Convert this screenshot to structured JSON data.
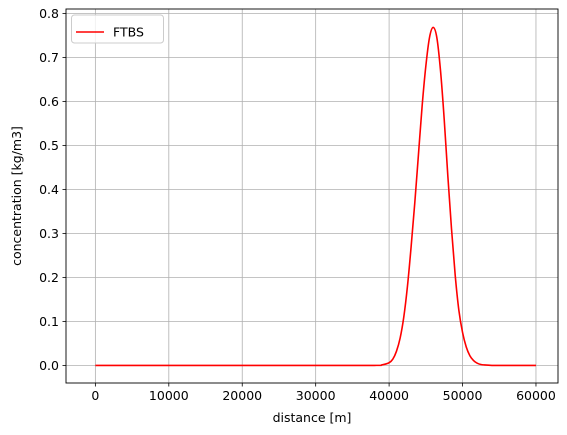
{
  "chart_data": {
    "type": "line",
    "xlabel": "distance [m]",
    "ylabel": "concentration [kg/m3]",
    "xlim": [
      -4000,
      63000
    ],
    "ylim": [
      -0.04,
      0.81
    ],
    "x_ticks": [
      0,
      10000,
      20000,
      30000,
      40000,
      50000,
      60000
    ],
    "x_tick_labels": [
      "0",
      "10000",
      "20000",
      "30000",
      "40000",
      "50000",
      "60000"
    ],
    "y_ticks": [
      0.0,
      0.1,
      0.2,
      0.3,
      0.4,
      0.5,
      0.6,
      0.7,
      0.8
    ],
    "y_tick_labels": [
      "0.0",
      "0.1",
      "0.2",
      "0.3",
      "0.4",
      "0.5",
      "0.6",
      "0.7",
      "0.8"
    ],
    "grid": true,
    "legend_position": "top-left",
    "series": [
      {
        "name": "FTBS",
        "color": "#ff0000",
        "x": [
          0,
          10000,
          20000,
          30000,
          38000,
          39000,
          40000,
          40500,
          41000,
          41500,
          42000,
          42500,
          43000,
          43500,
          44000,
          44500,
          45000,
          45500,
          46000,
          46500,
          47000,
          47500,
          48000,
          48500,
          49000,
          49500,
          50000,
          50500,
          51000,
          51500,
          52000,
          52500,
          53000,
          54000,
          55000,
          60000
        ],
        "y": [
          0.0,
          0.0,
          0.0,
          0.0,
          0.0,
          0.001,
          0.006,
          0.014,
          0.032,
          0.062,
          0.11,
          0.18,
          0.27,
          0.37,
          0.48,
          0.59,
          0.68,
          0.745,
          0.768,
          0.745,
          0.67,
          0.56,
          0.43,
          0.31,
          0.205,
          0.125,
          0.075,
          0.042,
          0.022,
          0.011,
          0.005,
          0.002,
          0.001,
          0.0,
          0.0,
          0.0
        ]
      }
    ]
  }
}
